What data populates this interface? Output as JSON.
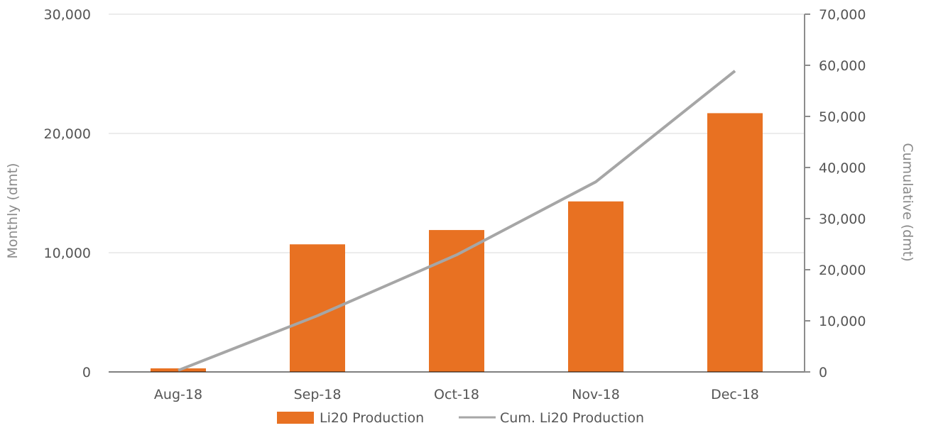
{
  "chart_data": {
    "type": "bar",
    "categories": [
      "Aug-18",
      "Sep-18",
      "Oct-18",
      "Nov-18",
      "Dec-18"
    ],
    "series": [
      {
        "name": "Li20 Production",
        "type": "bar",
        "axis": "left",
        "values": [
          300,
          10700,
          11900,
          14300,
          21700
        ]
      },
      {
        "name": "Cum. Li20 Production",
        "type": "line",
        "axis": "right",
        "values": [
          300,
          11000,
          22900,
          37200,
          58900
        ]
      }
    ],
    "ylabel": "Monthly (dmt)",
    "y2label": "Cumulative (dmt)",
    "ylim": [
      0,
      30000
    ],
    "y2lim": [
      0,
      70000
    ],
    "yticks": [
      "0",
      "10,000",
      "20,000",
      "30,000"
    ],
    "y2ticks": [
      "0",
      "10,000",
      "20,000",
      "30,000",
      "40,000",
      "50,000",
      "60,000",
      "70,000"
    ],
    "grid": true,
    "legend_position": "bottom",
    "colors": {
      "bar": "#E87122",
      "line": "#A6A6A6",
      "grid": "#D9D9D9",
      "axis": "#8C8C8C"
    }
  }
}
